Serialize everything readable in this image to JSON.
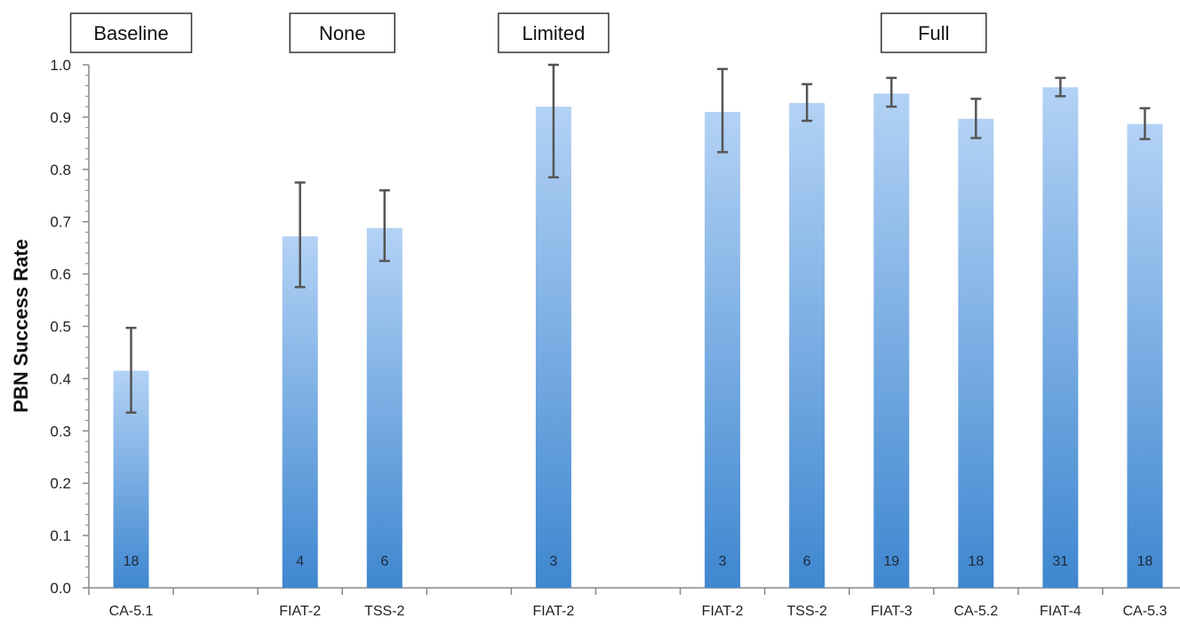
{
  "chart_data": {
    "type": "bar",
    "ylabel": "PBN Success Rate",
    "xlabel": "",
    "ylim": [
      0,
      1.0
    ],
    "yticks": [
      "0.0",
      "0.1",
      "0.2",
      "0.3",
      "0.4",
      "0.5",
      "0.6",
      "0.7",
      "0.8",
      "0.9",
      "1.0"
    ],
    "groups": [
      {
        "name": "Baseline",
        "slots": [
          0
        ]
      },
      {
        "name": "None",
        "slots": [
          2,
          3
        ]
      },
      {
        "name": "Limited",
        "slots": [
          5
        ]
      },
      {
        "name": "Full",
        "slots": [
          7,
          8,
          9,
          10,
          11,
          12
        ]
      }
    ],
    "slots": 13,
    "bars": [
      {
        "slot": 0,
        "category": "CA-5.1",
        "value": 0.415,
        "err_low": 0.335,
        "err_high": 0.497,
        "count": "18"
      },
      {
        "slot": 2,
        "category": "FIAT-2",
        "value": 0.672,
        "err_low": 0.575,
        "err_high": 0.775,
        "count": "4"
      },
      {
        "slot": 3,
        "category": "TSS-2",
        "value": 0.688,
        "err_low": 0.625,
        "err_high": 0.76,
        "count": "6"
      },
      {
        "slot": 5,
        "category": "FIAT-2",
        "value": 0.92,
        "err_low": 0.785,
        "err_high": 1.0,
        "count": "3"
      },
      {
        "slot": 7,
        "category": "FIAT-2",
        "value": 0.91,
        "err_low": 0.833,
        "err_high": 0.992,
        "count": "3"
      },
      {
        "slot": 8,
        "category": "TSS-2",
        "value": 0.927,
        "err_low": 0.893,
        "err_high": 0.963,
        "count": "6"
      },
      {
        "slot": 9,
        "category": "FIAT-3",
        "value": 0.945,
        "err_low": 0.92,
        "err_high": 0.975,
        "count": "19"
      },
      {
        "slot": 10,
        "category": "CA-5.2",
        "value": 0.897,
        "err_low": 0.86,
        "err_high": 0.935,
        "count": "18"
      },
      {
        "slot": 11,
        "category": "FIAT-4",
        "value": 0.957,
        "err_low": 0.94,
        "err_high": 0.975,
        "count": "31"
      },
      {
        "slot": 12,
        "category": "CA-5.3",
        "value": 0.887,
        "err_low": 0.858,
        "err_high": 0.917,
        "count": "18"
      }
    ],
    "colors": {
      "bar_top": "#b3d2f5",
      "bar_bottom": "#3f87d0",
      "error_bar": "#555555",
      "axis": "#888888"
    },
    "grid": false,
    "legend": "none"
  }
}
